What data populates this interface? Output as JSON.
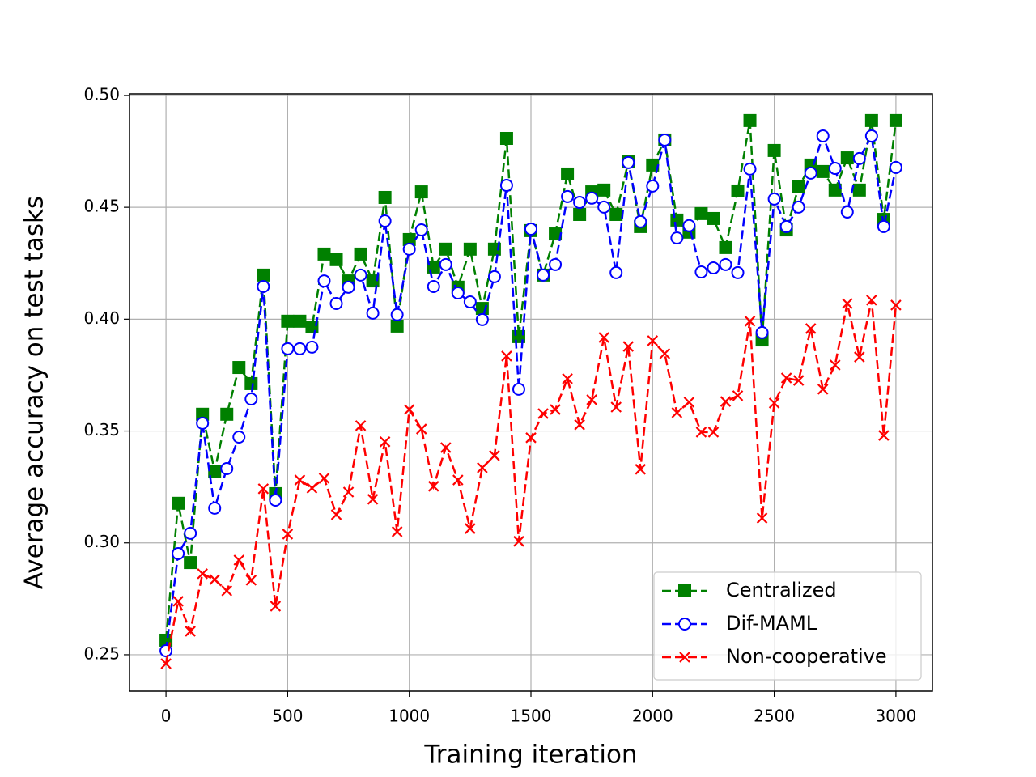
{
  "chart_data": {
    "type": "line",
    "xlabel": "Training iteration",
    "ylabel": "Average accuracy on test tasks",
    "x": [
      0,
      50,
      100,
      150,
      200,
      250,
      300,
      350,
      400,
      450,
      500,
      550,
      600,
      650,
      700,
      750,
      800,
      850,
      900,
      950,
      1000,
      1050,
      1100,
      1150,
      1200,
      1250,
      1300,
      1350,
      1400,
      1450,
      1500,
      1550,
      1600,
      1650,
      1700,
      1750,
      1800,
      1850,
      1900,
      1950,
      2000,
      2050,
      2100,
      2150,
      2200,
      2250,
      2300,
      2350,
      2400,
      2450,
      2500,
      2550,
      2600,
      2650,
      2700,
      2750,
      2800,
      2850,
      2900,
      2950,
      3000
    ],
    "series": [
      {
        "name": "Centralized",
        "color": "#008000",
        "marker": "s",
        "linestyle": "--",
        "values": [
          0.2565,
          0.3177,
          0.2912,
          0.3575,
          0.3321,
          0.3575,
          0.3784,
          0.3712,
          0.4197,
          0.322,
          0.3991,
          0.3991,
          0.3965,
          0.4291,
          0.4266,
          0.4171,
          0.4291,
          0.4171,
          0.4544,
          0.3969,
          0.4356,
          0.4569,
          0.4233,
          0.4313,
          0.4143,
          0.4313,
          0.4048,
          0.4313,
          0.4808,
          0.3922,
          0.4396,
          0.4197,
          0.4381,
          0.4649,
          0.4468,
          0.4569,
          0.4577,
          0.4468,
          0.4703,
          0.4414,
          0.4689,
          0.4801,
          0.4443,
          0.4389,
          0.4472,
          0.445,
          0.432,
          0.4573,
          0.4888,
          0.3907,
          0.4754,
          0.4399,
          0.4591,
          0.4689,
          0.466,
          0.4577,
          0.4721,
          0.4577,
          0.4888,
          0.4446,
          0.4888
        ]
      },
      {
        "name": "Dif-MAML",
        "color": "#0000ff",
        "marker": "o",
        "linestyle": "--",
        "values": [
          0.2518,
          0.2952,
          0.3043,
          0.3535,
          0.3155,
          0.3332,
          0.3473,
          0.3643,
          0.4146,
          0.3191,
          0.3868,
          0.3868,
          0.3875,
          0.4171,
          0.407,
          0.4143,
          0.4197,
          0.4027,
          0.4439,
          0.402,
          0.4313,
          0.4399,
          0.4146,
          0.4244,
          0.4117,
          0.4077,
          0.3998,
          0.419,
          0.4598,
          0.3687,
          0.4403,
          0.4197,
          0.4244,
          0.4548,
          0.4522,
          0.4541,
          0.4501,
          0.4208,
          0.47,
          0.4436,
          0.4595,
          0.4801,
          0.4363,
          0.4418,
          0.4211,
          0.4229,
          0.4244,
          0.4208,
          0.4671,
          0.394,
          0.4537,
          0.4414,
          0.4501,
          0.4653,
          0.4819,
          0.4674,
          0.4479,
          0.4718,
          0.4819,
          0.4414,
          0.4678
        ]
      },
      {
        "name": "Non-cooperative",
        "color": "#ff0000",
        "marker": "x",
        "linestyle": "--",
        "values": [
          0.246,
          0.2739,
          0.2605,
          0.2862,
          0.2836,
          0.2786,
          0.2923,
          0.2833,
          0.3242,
          0.2717,
          0.3039,
          0.3281,
          0.3245,
          0.3289,
          0.3126,
          0.3227,
          0.3524,
          0.3195,
          0.3452,
          0.305,
          0.3596,
          0.3509,
          0.3253,
          0.3426,
          0.3281,
          0.3064,
          0.3336,
          0.339,
          0.3835,
          0.3007,
          0.347,
          0.3578,
          0.3596,
          0.3734,
          0.3528,
          0.364,
          0.3918,
          0.3607,
          0.3878,
          0.3329,
          0.3904,
          0.3846,
          0.3582,
          0.3629,
          0.3495,
          0.3495,
          0.3632,
          0.3658,
          0.3991,
          0.3111,
          0.3625,
          0.3737,
          0.3726,
          0.3958,
          0.3687,
          0.3795,
          0.407,
          0.3831,
          0.4085,
          0.348,
          0.4063
        ]
      }
    ],
    "xlim": [
      -150,
      3150
    ],
    "ylim": [
      0.2337,
      0.5007
    ],
    "xticks": [
      0,
      500,
      1000,
      1500,
      2000,
      2500,
      3000
    ],
    "yticks": [
      {
        "value": 0.25,
        "label": "0.25"
      },
      {
        "value": 0.3,
        "label": "0.30"
      },
      0.35,
      {
        "value": 0.4,
        "label": "0.40"
      },
      0.45,
      {
        "value": 0.5,
        "label": "0.50"
      }
    ],
    "grid": true,
    "legend": "lower right"
  }
}
